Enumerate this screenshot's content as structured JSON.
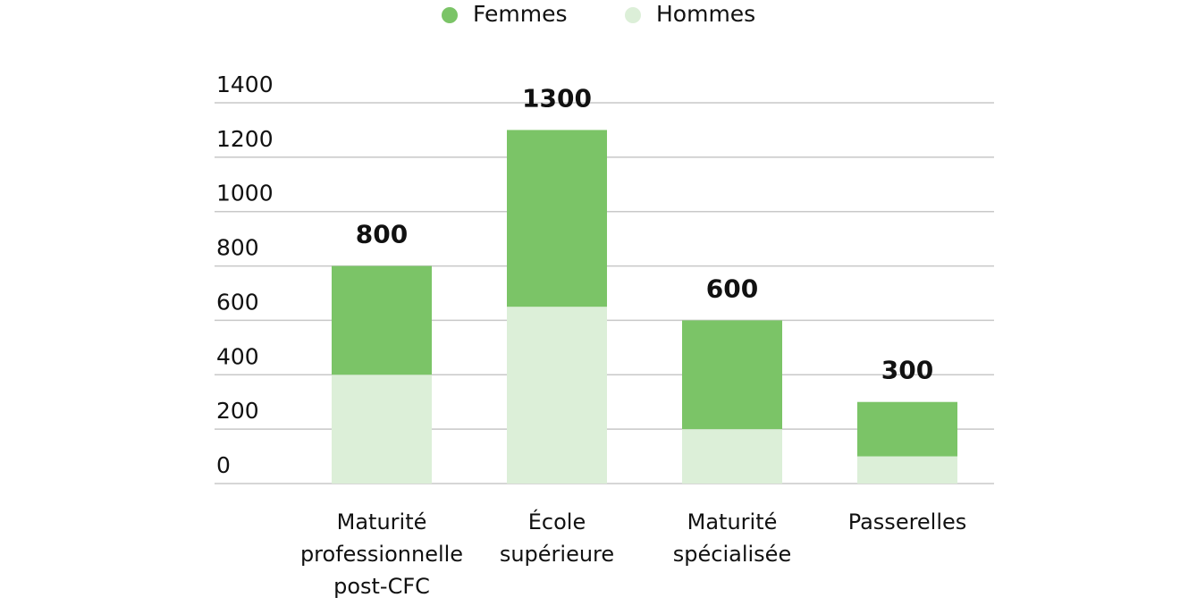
{
  "chart_data": {
    "type": "stacked_bar",
    "categories": [
      "Maturité\nprofessionnelle\npost-CFC",
      "École\nsupérieure",
      "Maturité\nspécialisée",
      "Passerelles"
    ],
    "series": [
      {
        "name": "Hommes",
        "color": "#dcefd8",
        "values": [
          400,
          650,
          200,
          100
        ]
      },
      {
        "name": "Femmes",
        "color": "#7bc467",
        "values": [
          400,
          650,
          400,
          200
        ]
      }
    ],
    "totals": [
      800,
      1300,
      600,
      300
    ],
    "ylim": [
      0,
      1400
    ],
    "yticks": [
      0,
      200,
      400,
      600,
      800,
      1000,
      1200,
      1400
    ],
    "grid": true,
    "legend": "top"
  }
}
